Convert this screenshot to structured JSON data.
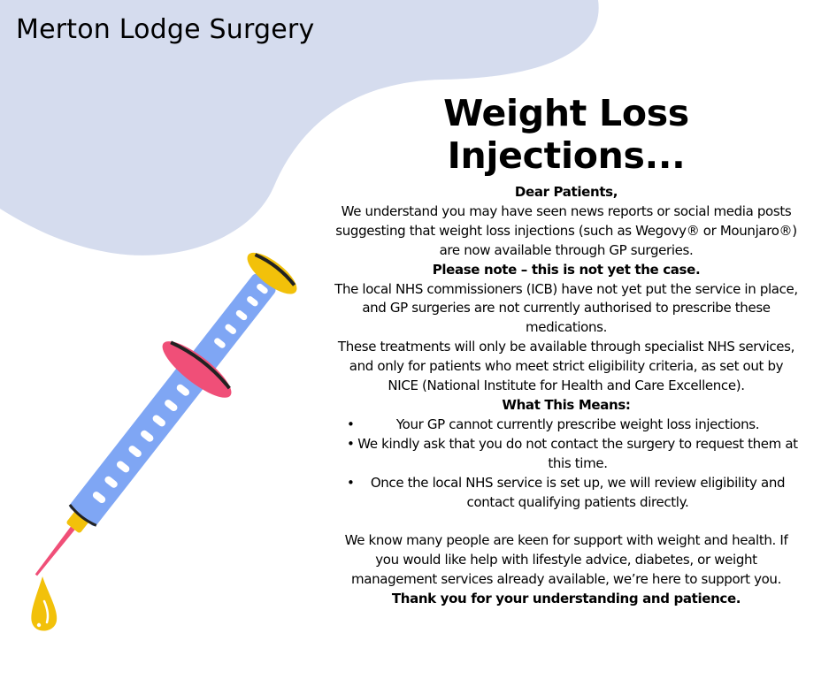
{
  "header": {
    "org_name": "Merton Lodge Surgery",
    "title": "Weight Loss Injections..."
  },
  "letter": {
    "greeting": "Dear Patients,",
    "para1": "We understand you may have seen news reports or social media posts suggesting that weight loss injections (such as Wegovy® or Mounjaro®) are now available through GP surgeries.",
    "note": "Please note – this is not yet the case.",
    "para2": "The local NHS commissioners (ICB) have not yet put the service in place, and GP surgeries are not currently authorised to prescribe these medications.",
    "para3": "These treatments will only be available through specialist NHS services, and only for patients who meet strict eligibility criteria, as set out by NICE (National Institute for Health and Care Excellence).",
    "means_heading": "What This Means:",
    "bullets": [
      "Your GP cannot currently prescribe weight loss injections.",
      "We kindly ask that you do not contact the surgery to request them at this time.",
      "Once the local NHS service is set up, we will review eligibility and contact qualifying patients directly."
    ],
    "para4": "We know many people are keen for support with weight and health. If you would like help with lifestyle advice, diabetes, or weight management services already available, we’re here to support you.",
    "closing": "Thank you for your understanding and patience."
  },
  "colors": {
    "blob": "#d5dcee",
    "barrel": "#7fa6f4",
    "flange": "#f04f78",
    "cap": "#f2c10a",
    "dark": "#222222"
  },
  "illustration": "syringe-icon"
}
